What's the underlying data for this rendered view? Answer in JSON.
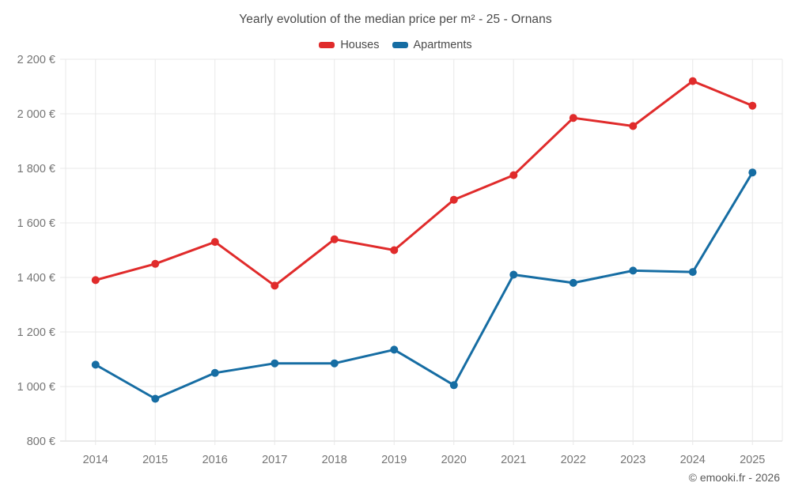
{
  "chart_data": {
    "type": "line",
    "title": "Yearly evolution of the median price per m² - 25 - Ornans",
    "footer": "© emooki.fr - 2026",
    "categories": [
      "2014",
      "2015",
      "2016",
      "2017",
      "2018",
      "2019",
      "2020",
      "2021",
      "2022",
      "2023",
      "2024",
      "2025"
    ],
    "series": [
      {
        "name": "Houses",
        "color": "#e02b2b",
        "values": [
          1390,
          1450,
          1530,
          1370,
          1540,
          1500,
          1685,
          1775,
          1985,
          1955,
          2120,
          2030
        ]
      },
      {
        "name": "Apartments",
        "color": "#166da3",
        "values": [
          1080,
          955,
          1050,
          1085,
          1085,
          1135,
          1005,
          1410,
          1380,
          1425,
          1420,
          1785
        ]
      }
    ],
    "xlabel": "",
    "ylabel": "",
    "ylim": [
      800,
      2200
    ],
    "y_ticks": [
      800,
      1000,
      1200,
      1400,
      1600,
      1800,
      2000,
      2200
    ],
    "y_tick_labels": [
      "800 €",
      "1 000 €",
      "1 200 €",
      "1 400 €",
      "1 600 €",
      "1 800 €",
      "2 000 €",
      "2 200 €"
    ],
    "grid": true,
    "legend_position": "top",
    "colors": {
      "grid": "#e8e8e8",
      "axis": "#d4d4d4",
      "tick_text": "#757575",
      "title_text": "#4a4a4a",
      "footer_text": "#595959",
      "background": "#ffffff"
    }
  }
}
